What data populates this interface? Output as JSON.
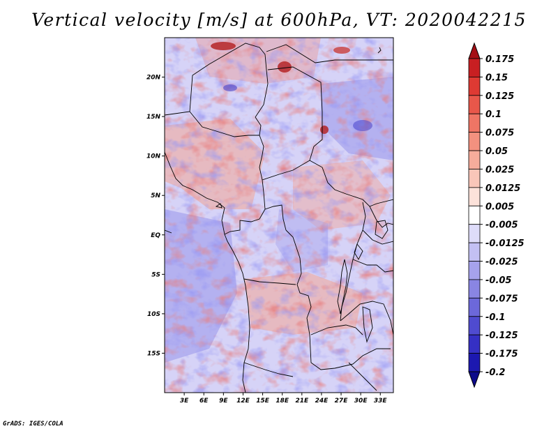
{
  "title": "Vertical velocity [m/s] at 600hPa, VT: 2020042215",
  "credit": "GrADS: IGES/COLA",
  "map": {
    "lon_labels": [
      "3E",
      "6E",
      "9E",
      "12E",
      "15E",
      "18E",
      "21E",
      "24E",
      "27E",
      "30E",
      "33E"
    ],
    "lat_labels": [
      "20N",
      "15N",
      "10N",
      "5N",
      "EQ",
      "5S",
      "10S",
      "15S"
    ],
    "lon_range": [
      0,
      35
    ],
    "lat_range": [
      -20,
      25
    ]
  },
  "colorbar": {
    "labels": [
      "0.175",
      "0.15",
      "0.125",
      "0.1",
      "0.075",
      "0.05",
      "0.025",
      "0.0125",
      "0.005",
      "-0.005",
      "-0.0125",
      "-0.025",
      "-0.05",
      "-0.075",
      "-0.1",
      "-0.125",
      "-0.175",
      "-0.2"
    ],
    "colors": [
      "#a50f15",
      "#c81f22",
      "#de3a33",
      "#e8574a",
      "#ef7565",
      "#f3917f",
      "#f6ac9b",
      "#f9c6b9",
      "#fce2da",
      "#ffffff",
      "#dedcf9",
      "#c3c0f3",
      "#a6a2ec",
      "#8985e3",
      "#6c68da",
      "#4f4bd0",
      "#3530c4",
      "#1c18b0",
      "#0d0a8a"
    ]
  }
}
